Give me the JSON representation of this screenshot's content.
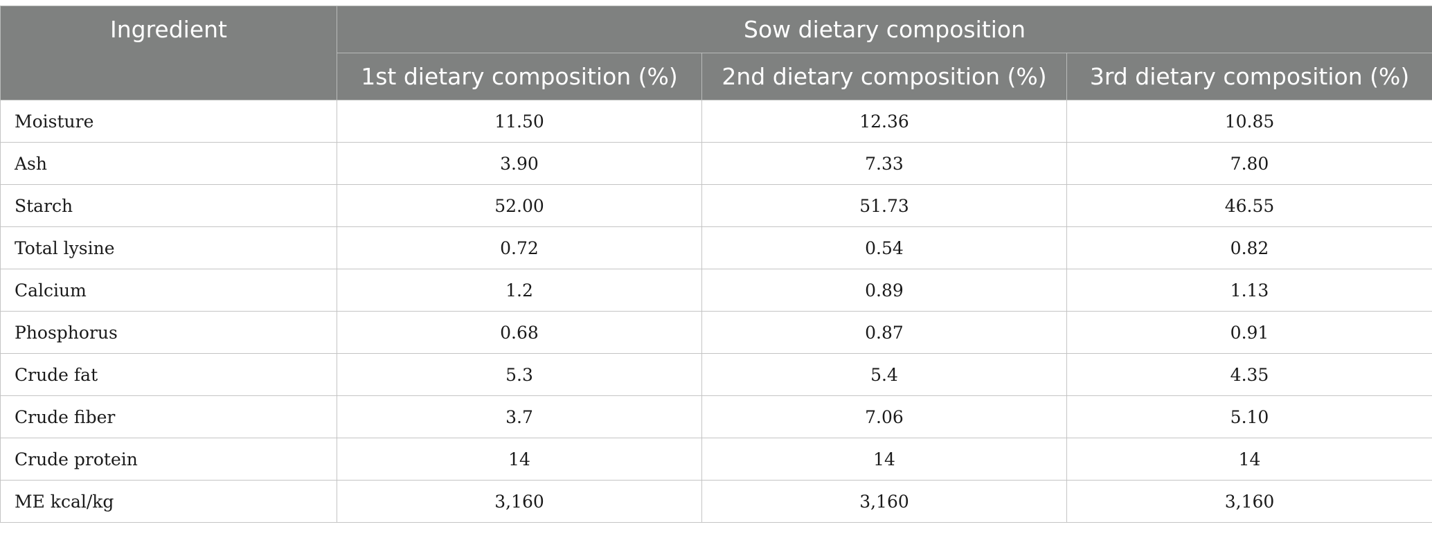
{
  "table": {
    "headers": {
      "ingredient": "Ingredient",
      "group": "Sow dietary composition",
      "columns": [
        "1st dietary composition (%)",
        "2nd dietary composition (%)",
        "3rd dietary composition (%)"
      ]
    },
    "rows": [
      {
        "label": "Moisture",
        "values": [
          "11.50",
          "12.36",
          "10.85"
        ]
      },
      {
        "label": "Ash",
        "values": [
          "3.90",
          "7.33",
          "7.80"
        ]
      },
      {
        "label": "Starch",
        "values": [
          "52.00",
          "51.73",
          "46.55"
        ]
      },
      {
        "label": "Total lysine",
        "values": [
          "0.72",
          "0.54",
          "0.82"
        ]
      },
      {
        "label": "Calcium",
        "values": [
          "1.2",
          "0.89",
          "1.13"
        ]
      },
      {
        "label": "Phosphorus",
        "values": [
          "0.68",
          "0.87",
          "0.91"
        ]
      },
      {
        "label": "Crude fat",
        "values": [
          "5.3",
          "5.4",
          "4.35"
        ]
      },
      {
        "label": "Crude fiber",
        "values": [
          "3.7",
          "7.06",
          "5.10"
        ]
      },
      {
        "label": "Crude protein",
        "values": [
          "14",
          "14",
          "14"
        ]
      },
      {
        "label": "ME kcal/kg",
        "values": [
          "3,160",
          "3,160",
          "3,160"
        ]
      }
    ],
    "colors": {
      "header_bg": "#7f8180",
      "header_text": "#ffffff",
      "grid": "#c4c4c4"
    }
  }
}
